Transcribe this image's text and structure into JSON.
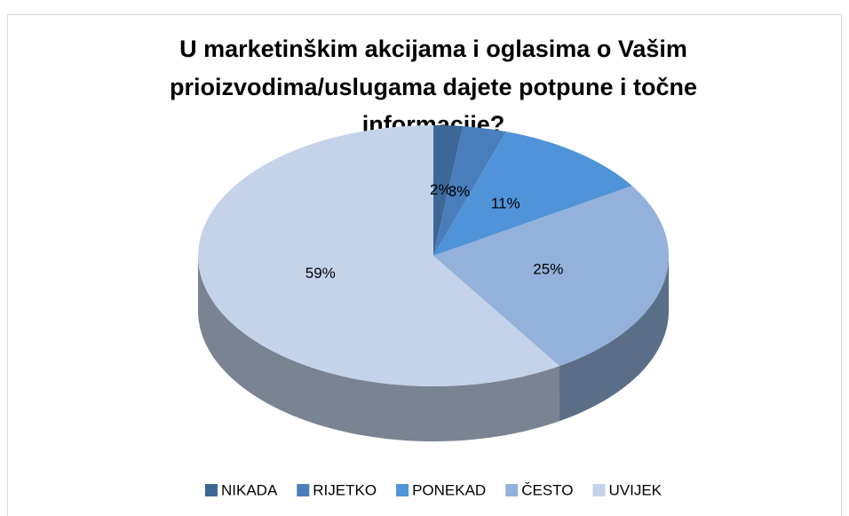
{
  "chart_data": {
    "type": "pie3d",
    "title": [
      "U marketinškim akcijama i oglasima o Vašim",
      "prioizvodima/uslugama dajete potpune i točne",
      "informacije?"
    ],
    "categories": [
      "NIKADA",
      "RIJETKO",
      "PONEKAD",
      "ČESTO",
      "UVIJEK"
    ],
    "values": [
      2,
      3,
      11,
      25,
      59
    ],
    "value_labels": [
      "2%",
      "3%",
      "11%",
      "25%",
      "59%"
    ],
    "colors": [
      "#3d6797",
      "#4a7ebb",
      "#4f93d8",
      "#93b1da",
      "#c5d3ea"
    ],
    "legend": "bottom"
  }
}
